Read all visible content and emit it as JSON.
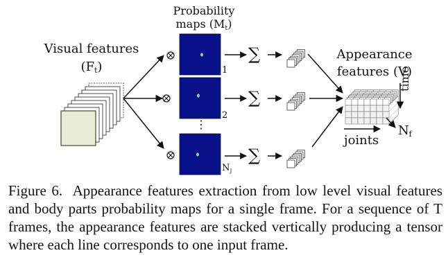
{
  "labels": {
    "prob_line1": "Probability",
    "prob_line2": "maps (M",
    "prob_sub": "t",
    "prob_close": ")",
    "visual_line1": "Visual features",
    "visual_line2_open": "(F",
    "visual_sub": "t",
    "visual_close": ")",
    "app_line1": "Appearance",
    "app_line2": "features (V)",
    "map_idx_1": "1",
    "map_idx_2": "2",
    "map_idx_j_main": "N",
    "map_idx_j_sub": "J",
    "ellipsis": "⋮",
    "sum_symbol": "∑",
    "mult_symbol": "⊗",
    "time_label": "time",
    "nf_main": "N",
    "nf_sub": "f",
    "joints_label": "joints"
  },
  "caption": {
    "figure_label": "Figure 6.",
    "text": "Appearance features extraction from low level visual features and body parts probability maps for a single frame. For a sequence of T frames, the appearance features are stacked vertically producing a tensor where each line corresponds to one input frame."
  },
  "colors": {
    "map_fill": "#08118a",
    "map_spot": "#7fd6a0",
    "stack_face": "#e7ecd4",
    "line": "#111111"
  },
  "icons": [
    "multiply-circle-icon",
    "summation-icon",
    "arrow-icon"
  ]
}
